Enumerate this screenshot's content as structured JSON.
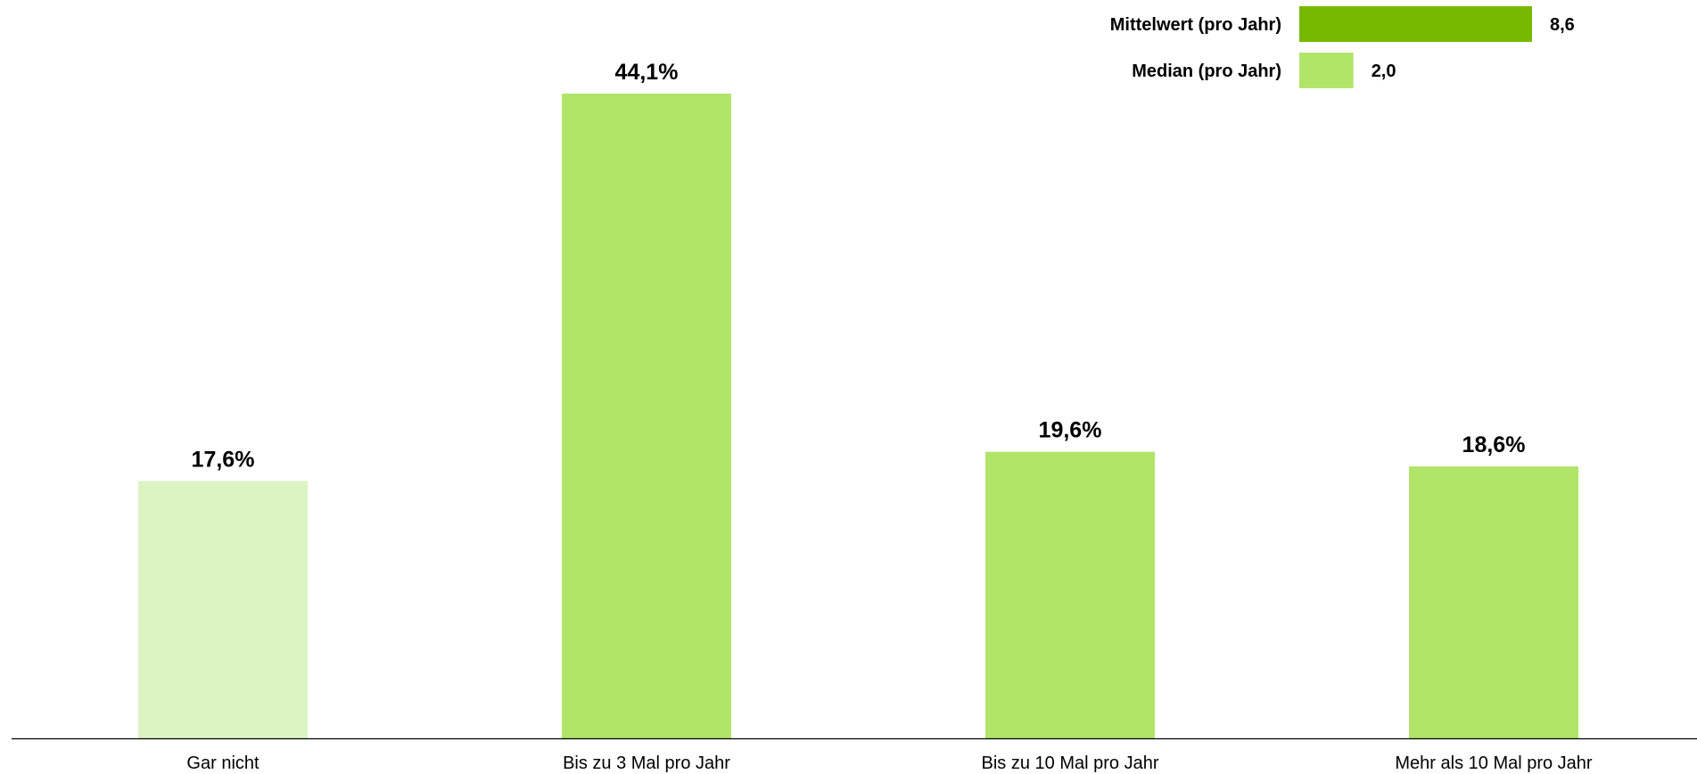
{
  "chart_data": {
    "type": "bar",
    "title": "",
    "xlabel": "",
    "ylabel": "",
    "unit": "%",
    "ylim": [
      0,
      44.1
    ],
    "grid": false,
    "categories": [
      "Gar nicht",
      "Bis zu 3 Mal pro Jahr",
      "Bis zu 10 Mal pro Jahr",
      "Mehr als 10 Mal pro Jahr"
    ],
    "values": [
      17.6,
      44.1,
      19.6,
      18.6
    ],
    "value_labels": [
      "17,6%",
      "44,1%",
      "19,6%",
      "18,6%"
    ],
    "bar_colors": [
      "#dcf3c2",
      "#b1e56a",
      "#b1e56a",
      "#b1e56a"
    ],
    "summary": {
      "type": "bar",
      "orientation": "horizontal",
      "placement": "top-right",
      "xlim": [
        0,
        8.6
      ],
      "items": [
        {
          "label": "Mittelwert (pro Jahr)",
          "value": 8.6,
          "value_label": "8,6",
          "color": "#77b800"
        },
        {
          "label": "Median (pro Jahr)",
          "value": 2.0,
          "value_label": "2,0",
          "color": "#b1e56a"
        }
      ]
    }
  }
}
